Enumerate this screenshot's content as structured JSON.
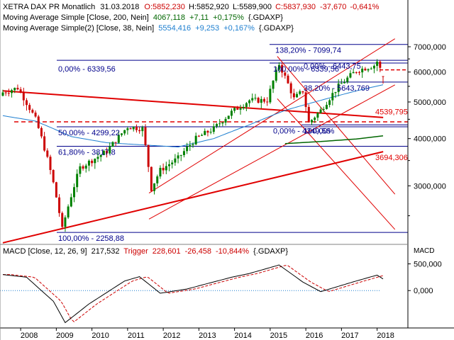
{
  "header": {
    "instrument": "XETRA DAX PR Monatlich",
    "date": "31.03.2018",
    "ohlc": [
      {
        "label": "O:",
        "value": "5852,230",
        "color": "#cc0000"
      },
      {
        "label": "H:",
        "value": "5852,920",
        "color": "#000000"
      },
      {
        "label": "L:",
        "value": "5589,900",
        "color": "#000000"
      },
      {
        "label": "C:",
        "value": "5837,930",
        "color": "#cc0000"
      }
    ],
    "change": "-37,670",
    "change_pct": "-0,641%",
    "ma200": {
      "label": "Moving Average Simple [Close, 200, Nein]",
      "value": "4067,118",
      "change": "+7,11",
      "pct": "+0,175%",
      "src": "{.GDAXP}",
      "color": "#006600"
    },
    "ma38": {
      "label": "Moving Average Simple(2) [Close, 38, Nein]",
      "value": "5554,416",
      "change": "+9,253",
      "pct": "+0,167%",
      "src": "{.GDAXP}",
      "color": "#1e7fd0"
    }
  },
  "macd_header": {
    "label": "MACD [Close, 12, 26, 9]",
    "value": "217,532",
    "trigger_label": "Trigger",
    "trigger_value": "228,601",
    "change": "-26,458",
    "pct": "-10,844%",
    "src": "{.GDAXP}"
  },
  "colors": {
    "up": "#008000",
    "down": "#cc0000",
    "axis": "#000000",
    "grid": "#d0d0d0",
    "fib": "#00008b",
    "trend": "#e00000",
    "ma38": "#1e7fd0",
    "ma200": "#006600"
  },
  "fib_labels": [
    {
      "text": "0,00% - 6339,56",
      "price": 6339.56
    },
    {
      "text": "50,00% - 4299,22",
      "price": 4299.22
    },
    {
      "text": "61,80% - 3817,8",
      "price": 3817.8
    },
    {
      "text": "100,00% - 2258,88",
      "price": 2258.88
    },
    {
      "text": "138,20% - 7099,74",
      "price": 7099.74
    },
    {
      "text": "0,00% - 6443,75",
      "price": 6443.75
    },
    {
      "text": "100,00% - 6339,56",
      "price": 6339.56
    },
    {
      "text": "38,20% - 5643,769",
      "price": 5643.77
    },
    {
      "text": "0,00% - 4349,56",
      "price": 4349.56
    },
    {
      "text": "100,00%",
      "price": 4349.56
    }
  ],
  "level_labels": [
    {
      "text": "4539,795",
      "price": 4539.795
    },
    {
      "text": "3694,306",
      "price": 3694.306
    }
  ],
  "price_axis_labels": [
    "7000,000",
    "6000,000",
    "5000,000",
    "4000,000",
    "3000,000"
  ],
  "macd_axis_title": "MACD",
  "macd_axis_labels": [
    "500,000",
    "0,000"
  ],
  "x_axis_labels": [
    "2008",
    "2009",
    "2010",
    "2011",
    "2012",
    "2013",
    "2014",
    "2015",
    "2016",
    "2017",
    "2018"
  ],
  "chart_data": {
    "type": "line",
    "subtype": "candlestick",
    "title": "XETRA DAX PR Monatlich",
    "period": "monthly",
    "x_range": [
      "2007-07",
      "2018-03"
    ],
    "y_scale": "log",
    "ylim": [
      2100,
      7500
    ],
    "monthly_close_waypoints": [
      {
        "x": "2007-07",
        "y": 5300
      },
      {
        "x": "2007-12",
        "y": 5450
      },
      {
        "x": "2008-06",
        "y": 4500
      },
      {
        "x": "2008-12",
        "y": 3050
      },
      {
        "x": "2009-03",
        "y": 2300
      },
      {
        "x": "2009-09",
        "y": 3350
      },
      {
        "x": "2010-06",
        "y": 3700
      },
      {
        "x": "2011-01",
        "y": 4300
      },
      {
        "x": "2011-06",
        "y": 4250
      },
      {
        "x": "2011-09",
        "y": 2950
      },
      {
        "x": "2011-12",
        "y": 3300
      },
      {
        "x": "2012-06",
        "y": 3550
      },
      {
        "x": "2012-12",
        "y": 4000
      },
      {
        "x": "2013-06",
        "y": 4250
      },
      {
        "x": "2013-12",
        "y": 4700
      },
      {
        "x": "2014-06",
        "y": 5050
      },
      {
        "x": "2014-12",
        "y": 5050
      },
      {
        "x": "2015-04",
        "y": 6300
      },
      {
        "x": "2015-09",
        "y": 5100
      },
      {
        "x": "2015-12",
        "y": 5350
      },
      {
        "x": "2016-02",
        "y": 4400
      },
      {
        "x": "2016-06",
        "y": 4750
      },
      {
        "x": "2016-12",
        "y": 5500
      },
      {
        "x": "2017-06",
        "y": 6050
      },
      {
        "x": "2017-12",
        "y": 6250
      },
      {
        "x": "2018-01",
        "y": 6400
      },
      {
        "x": "2018-03",
        "y": 5837.93
      }
    ],
    "last_candle": {
      "date": "31.03.2018",
      "open": 5852.23,
      "high": 5852.92,
      "low": 5589.9,
      "close": 5837.93
    },
    "series": [
      {
        "name": "Moving Average Simple(2) [Close, 38, Nein]",
        "last": 5554.416,
        "waypoints": [
          {
            "x": "2007-07",
            "y": 4600
          },
          {
            "x": "2008-06",
            "y": 4450
          },
          {
            "x": "2009-06",
            "y": 4050
          },
          {
            "x": "2010-06",
            "y": 3900
          },
          {
            "x": "2011-06",
            "y": 3850
          },
          {
            "x": "2012-06",
            "y": 3800
          },
          {
            "x": "2013-06",
            "y": 4000
          },
          {
            "x": "2014-06",
            "y": 4350
          },
          {
            "x": "2015-06",
            "y": 4750
          },
          {
            "x": "2016-06",
            "y": 5050
          },
          {
            "x": "2017-06",
            "y": 5350
          },
          {
            "x": "2018-03",
            "y": 5554
          }
        ]
      },
      {
        "name": "Moving Average Simple [Close, 200, Nein]",
        "last": 4067.118,
        "waypoints": [
          {
            "x": "2015-06",
            "y": 3880
          },
          {
            "x": "2016-06",
            "y": 3930
          },
          {
            "x": "2017-06",
            "y": 3990
          },
          {
            "x": "2018-03",
            "y": 4067
          }
        ]
      }
    ],
    "horizontal_levels": [
      {
        "label": "138,20% - 7099,74",
        "y": 7099.74
      },
      {
        "label": "0,00% - 6443,75",
        "y": 6443.75
      },
      {
        "label": "0,00% - 6339,56",
        "y": 6339.56
      },
      {
        "label": "38,20% - 5643,769",
        "y": 5643.77
      },
      {
        "label": "0,00% - 4349,56",
        "y": 4349.56
      },
      {
        "label": "50,00% - 4299,22",
        "y": 4299.22
      },
      {
        "label": "61,80% - 3817,8",
        "y": 3817.8
      },
      {
        "label": "100,00% - 2258,88",
        "y": 2258.88
      },
      {
        "label": "4539,795",
        "y": 4539.795
      },
      {
        "label": "3694,306",
        "y": 3694.306
      }
    ],
    "macd": {
      "name": "MACD [Close, 12, 26, 9]",
      "last": 217.532,
      "trigger_last": 228.601,
      "ylim": [
        -700,
        600
      ],
      "waypoints": [
        {
          "x": "2007-07",
          "y": 300
        },
        {
          "x": "2008-03",
          "y": 250
        },
        {
          "x": "2008-12",
          "y": -200
        },
        {
          "x": "2009-04",
          "y": -600
        },
        {
          "x": "2009-12",
          "y": -250
        },
        {
          "x": "2010-12",
          "y": 180
        },
        {
          "x": "2011-05",
          "y": 260
        },
        {
          "x": "2011-12",
          "y": -50
        },
        {
          "x": "2012-09",
          "y": 30
        },
        {
          "x": "2013-12",
          "y": 250
        },
        {
          "x": "2014-06",
          "y": 320
        },
        {
          "x": "2015-04",
          "y": 480
        },
        {
          "x": "2015-12",
          "y": 160
        },
        {
          "x": "2016-06",
          "y": -20
        },
        {
          "x": "2017-06",
          "y": 180
        },
        {
          "x": "2018-01",
          "y": 290
        },
        {
          "x": "2018-03",
          "y": 217.5
        }
      ]
    }
  }
}
